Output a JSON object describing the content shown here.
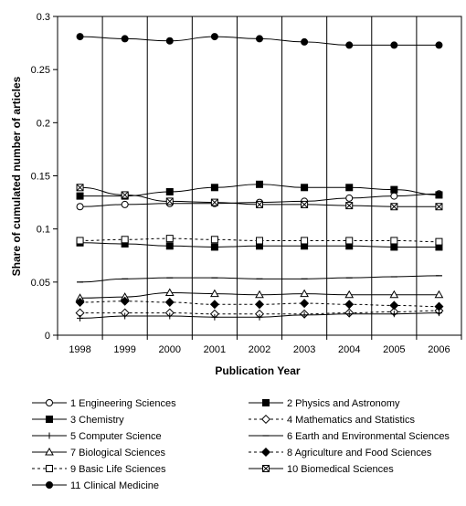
{
  "chart_data": {
    "type": "line",
    "xlabel": "Publication Year",
    "ylabel": "Share of cumulated number of articles",
    "ylim": [
      0,
      0.3
    ],
    "yticks": [
      "0",
      "0.05",
      "0.1",
      "0.15",
      "0.2",
      "0.25",
      "0.3"
    ],
    "x": [
      "1998",
      "1999",
      "2000",
      "2001",
      "2002",
      "2003",
      "2004",
      "2005",
      "2006"
    ],
    "grid": "vertical lines between years",
    "legend_placement": "bottom",
    "series": [
      {
        "name": "1 Engineering Sciences",
        "marker": "circle-open",
        "dash": "solid",
        "values": [
          0.121,
          0.123,
          0.124,
          0.124,
          0.125,
          0.126,
          0.129,
          0.131,
          0.133
        ]
      },
      {
        "name": "2 Physics and Astronomy",
        "marker": "square-filled",
        "dash": "solid",
        "values": [
          0.131,
          0.131,
          0.135,
          0.139,
          0.142,
          0.139,
          0.139,
          0.137,
          0.132
        ]
      },
      {
        "name": "3 Chemistry",
        "marker": "square-filled",
        "dash": "solid",
        "values": [
          0.087,
          0.086,
          0.084,
          0.083,
          0.084,
          0.084,
          0.084,
          0.083,
          0.083
        ]
      },
      {
        "name": "4 Mathematics and Statistics",
        "marker": "diamond-open",
        "dash": "dashed",
        "values": [
          0.021,
          0.021,
          0.021,
          0.02,
          0.02,
          0.02,
          0.021,
          0.022,
          0.023
        ]
      },
      {
        "name": "5 Computer Science",
        "marker": "plus",
        "dash": "solid",
        "values": [
          0.016,
          0.018,
          0.018,
          0.017,
          0.017,
          0.019,
          0.02,
          0.02,
          0.021
        ]
      },
      {
        "name": "6 Earth and Environmental Sciences",
        "marker": "dash",
        "dash": "solid",
        "values": [
          0.05,
          0.053,
          0.054,
          0.054,
          0.053,
          0.053,
          0.054,
          0.055,
          0.056
        ]
      },
      {
        "name": "7 Biological Sciences",
        "marker": "triangle-open",
        "dash": "solid",
        "values": [
          0.035,
          0.036,
          0.04,
          0.039,
          0.038,
          0.039,
          0.038,
          0.038,
          0.038
        ]
      },
      {
        "name": "8 Agriculture and Food Sciences",
        "marker": "diamond-filled",
        "dash": "dashed",
        "values": [
          0.031,
          0.032,
          0.031,
          0.029,
          0.029,
          0.03,
          0.029,
          0.028,
          0.027
        ]
      },
      {
        "name": "9 Basic Life Sciences",
        "marker": "square-open",
        "dash": "dashed",
        "values": [
          0.089,
          0.09,
          0.091,
          0.09,
          0.089,
          0.089,
          0.089,
          0.089,
          0.088
        ]
      },
      {
        "name": "10 Biomedical Sciences",
        "marker": "square-x",
        "dash": "solid",
        "values": [
          0.139,
          0.132,
          0.126,
          0.125,
          0.123,
          0.123,
          0.122,
          0.121,
          0.121
        ]
      },
      {
        "name": "11 Clinical Medicine",
        "marker": "circle-filled",
        "dash": "solid",
        "values": [
          0.281,
          0.279,
          0.277,
          0.281,
          0.279,
          0.276,
          0.273,
          0.273,
          0.273
        ]
      }
    ]
  }
}
